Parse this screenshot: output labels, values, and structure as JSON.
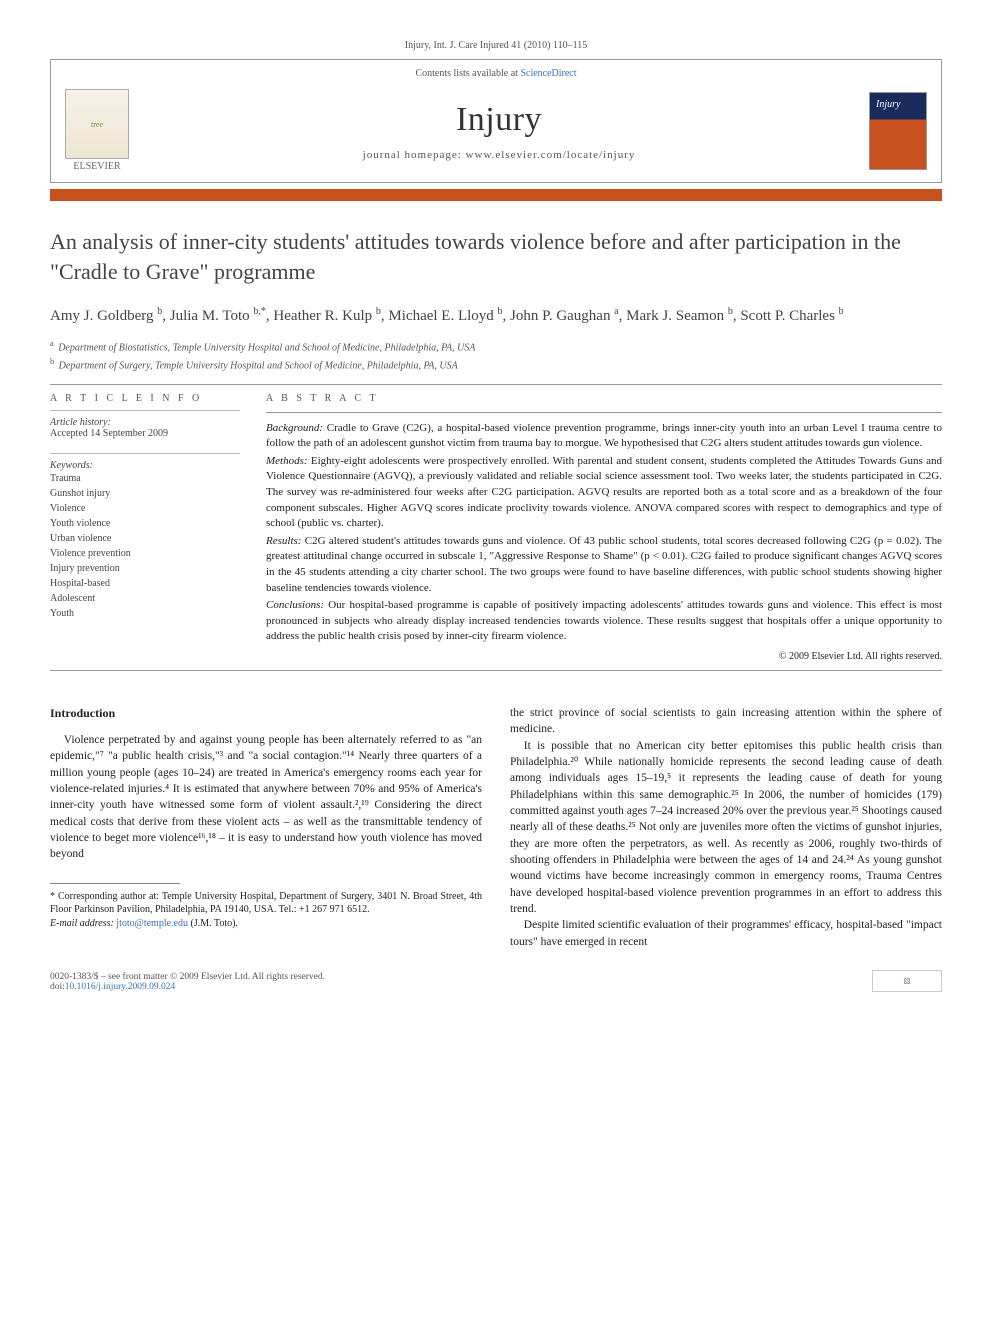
{
  "running_head": "Injury, Int. J. Care Injured 41 (2010) 110–115",
  "header": {
    "contents_line_pre": "Contents lists available at ",
    "contents_link": "ScienceDirect",
    "journal_title": "Injury",
    "homepage_label": "journal homepage: www.elsevier.com/locate/injury",
    "elsevier_label": "ELSEVIER"
  },
  "article": {
    "title": "An analysis of inner-city students' attitudes towards violence before and after participation in the \"Cradle to Grave\" programme",
    "authors_html": "Amy J. Goldberg <sup>b</sup>, Julia M. Toto <sup>b,*</sup>, Heather R. Kulp <sup>b</sup>, Michael E. Lloyd <sup>b</sup>, John P. Gaughan <sup>a</sup>, Mark J. Seamon <sup>b</sup>, Scott P. Charles <sup>b</sup>",
    "affiliations": [
      {
        "sup": "a",
        "text": "Department of Biostatistics, Temple University Hospital and School of Medicine, Philadelphia, PA, USA"
      },
      {
        "sup": "b",
        "text": "Department of Surgery, Temple University Hospital and School of Medicine, Philadelphia, PA, USA"
      }
    ]
  },
  "info": {
    "heading_info": "A R T I C L E   I N F O",
    "history_label": "Article history:",
    "accepted": "Accepted 14 September 2009",
    "keywords_label": "Keywords:",
    "keywords": [
      "Trauma",
      "Gunshot injury",
      "Violence",
      "Youth violence",
      "Urban violence",
      "Violence prevention",
      "Injury prevention",
      "Hospital-based",
      "Adolescent",
      "Youth"
    ]
  },
  "abstract": {
    "heading": "A B S T R A C T",
    "background_label": "Background:",
    "background": "Cradle to Grave (C2G), a hospital-based violence prevention programme, brings inner-city youth into an urban Level I trauma centre to follow the path of an adolescent gunshot victim from trauma bay to morgue. We hypothesised that C2G alters student attitudes towards gun violence.",
    "methods_label": "Methods:",
    "methods": "Eighty-eight adolescents were prospectively enrolled. With parental and student consent, students completed the Attitudes Towards Guns and Violence Questionnaire (AGVQ), a previously validated and reliable social science assessment tool. Two weeks later, the students participated in C2G. The survey was re-administered four weeks after C2G participation. AGVQ results are reported both as a total score and as a breakdown of the four component subscales. Higher AGVQ scores indicate proclivity towards violence. ANOVA compared scores with respect to demographics and type of school (public vs. charter).",
    "results_label": "Results:",
    "results": "C2G altered student's attitudes towards guns and violence. Of 43 public school students, total scores decreased following C2G (p = 0.02). The greatest attitudinal change occurred in subscale 1, \"Aggressive Response to Shame\" (p < 0.01). C2G failed to produce significant changes AGVQ scores in the 45 students attending a city charter school. The two groups were found to have baseline differences, with public school students showing higher baseline tendencies towards violence.",
    "conclusions_label": "Conclusions:",
    "conclusions": "Our hospital-based programme is capable of positively impacting adolescents' attitudes towards guns and violence. This effect is most pronounced in subjects who already display increased tendencies towards violence. These results suggest that hospitals offer a unique opportunity to address the public health crisis posed by inner-city firearm violence.",
    "copyright": "© 2009 Elsevier Ltd. All rights reserved."
  },
  "body": {
    "intro_heading": "Introduction",
    "p1": "Violence perpetrated by and against young people has been alternately referred to as \"an epidemic,\"⁷ \"a public health crisis,\"³ and \"a social contagion.\"¹⁴ Nearly three quarters of a million young people (ages 10–24) are treated in America's emergency rooms each year for violence-related injuries.⁴ It is estimated that anywhere between 70% and 95% of America's inner-city youth have witnessed some form of violent assault.²,¹⁹ Considering the direct medical costs that derive from these violent acts – as well as the transmittable tendency of violence to beget more violence¹⁶,¹⁸ – it is easy to understand how youth violence has moved beyond",
    "p2": "the strict province of social scientists to gain increasing attention within the sphere of medicine.",
    "p3": "It is possible that no American city better epitomises this public health crisis than Philadelphia.²⁰ While nationally homicide represents the second leading cause of death among individuals ages 15–19,⁵ it represents the leading cause of death for young Philadelphians within this same demographic.²⁵ In 2006, the number of homicides (179) committed against youth ages 7–24 increased 20% over the previous year.²⁵ Shootings caused nearly all of these deaths.²⁵ Not only are juveniles more often the victims of gunshot injuries, they are more often the perpetrators, as well. As recently as 2006, roughly two-thirds of shooting offenders in Philadelphia were between the ages of 14 and 24.²⁴ As young gunshot wound victims have become increasingly common in emergency rooms, Trauma Centres have developed hospital-based violence prevention programmes in an effort to address this trend.",
    "p4": "Despite limited scientific evaluation of their programmes' efficacy, hospital-based \"impact tours\" have emerged in recent"
  },
  "footnotes": {
    "corr": "* Corresponding author at: Temple University Hospital, Department of Surgery, 3401 N. Broad Street, 4th Floor Parkinson Pavilion, Philadelphia, PA 19140, USA. Tel.: +1 267 971 6512.",
    "email_label": "E-mail address:",
    "email": "jtoto@temple.edu",
    "email_suffix": "(J.M. Toto)."
  },
  "footer": {
    "line1": "0020-1383/$ – see front matter © 2009 Elsevier Ltd. All rights reserved.",
    "doi_pre": "doi:",
    "doi": "10.1016/j.injury.2009.09.024"
  },
  "colors": {
    "accent": "#c8501e",
    "link": "#3b6fb6",
    "rule": "#999999"
  }
}
